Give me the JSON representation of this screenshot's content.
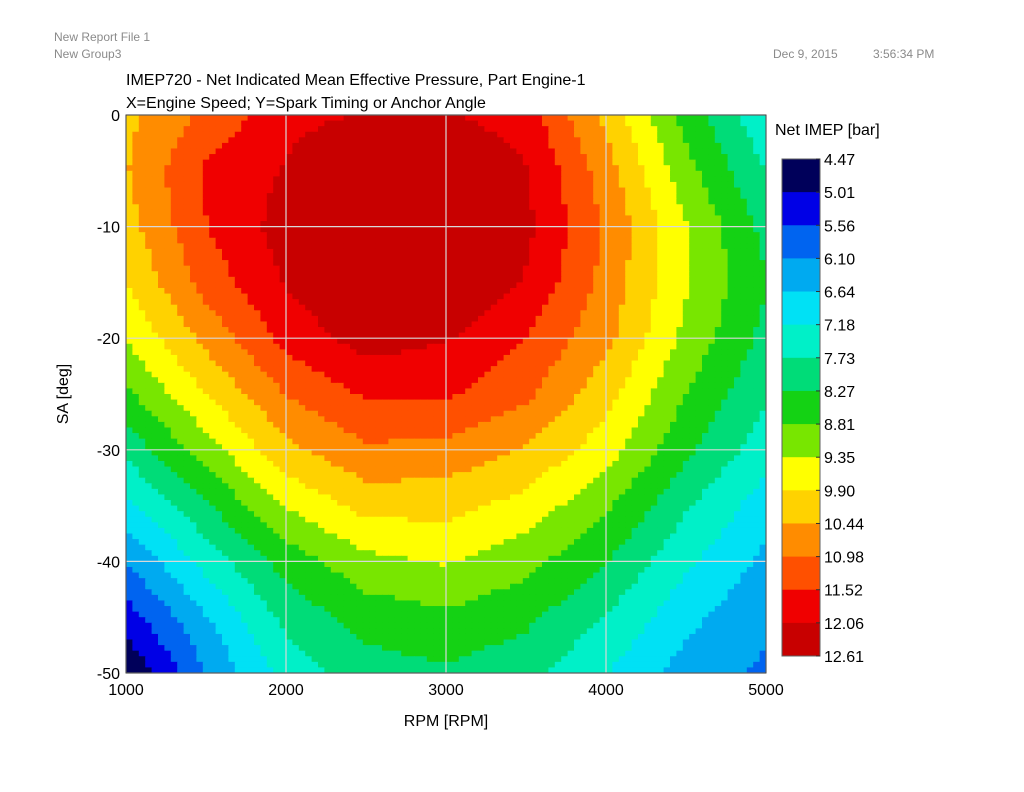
{
  "header": {
    "report_file": "New Report File 1",
    "group": "New Group3",
    "date": "Dec 9, 2015",
    "time": "3:56:34 PM"
  },
  "chart_data": {
    "type": "heatmap",
    "title": "IMEP720 - Net Indicated Mean Effective Pressure, Part Engine-1",
    "subtitle": "X=Engine Speed; Y=Spark Timing or Anchor Angle",
    "xlabel": "RPM [RPM]",
    "ylabel": "SA [deg]",
    "xlim": [
      1000,
      5000
    ],
    "ylim": [
      -50,
      0
    ],
    "xticks": [
      "1000",
      "2000",
      "3000",
      "4000",
      "5000"
    ],
    "yticks": [
      "0",
      "-10",
      "-20",
      "-30",
      "-40",
      "-50"
    ],
    "grid": true,
    "legend_position": "right",
    "colorbar": {
      "title": "Net IMEP [bar]",
      "labels": [
        "4.47",
        "5.01",
        "5.56",
        "6.10",
        "6.64",
        "7.18",
        "7.73",
        "8.27",
        "8.81",
        "9.35",
        "9.90",
        "10.44",
        "10.98",
        "11.52",
        "12.06",
        "12.61"
      ],
      "colors": [
        "#00005a",
        "#0000e6",
        "#0064f0",
        "#00aaf0",
        "#00e1f5",
        "#00f0c8",
        "#00dc78",
        "#14d214",
        "#78e600",
        "#ffff00",
        "#ffd200",
        "#ff8c00",
        "#ff5000",
        "#f00000",
        "#c80000"
      ]
    },
    "x": [
      1000,
      1500,
      2000,
      2500,
      3000,
      3500,
      4000,
      4500,
      5000
    ],
    "y": [
      0,
      -5,
      -10,
      -15,
      -20,
      -25,
      -30,
      -35,
      -40,
      -45,
      -50
    ],
    "z": [
      [
        10.3,
        11.1,
        11.9,
        12.1,
        12.1,
        11.8,
        10.3,
        8.6,
        7.3
      ],
      [
        10.4,
        11.6,
        12.1,
        12.7,
        12.7,
        12.1,
        10.7,
        9.0,
        7.7
      ],
      [
        10.2,
        11.5,
        12.3,
        12.8,
        12.8,
        12.2,
        10.9,
        9.4,
        8.1
      ],
      [
        9.9,
        11.2,
        12.1,
        12.7,
        12.8,
        12.0,
        10.8,
        9.4,
        8.3
      ],
      [
        9.4,
        10.6,
        11.7,
        12.3,
        12.1,
        11.5,
        10.6,
        9.2,
        8.1
      ],
      [
        8.7,
        9.9,
        11.0,
        11.6,
        11.6,
        11.1,
        10.1,
        8.8,
        7.8
      ],
      [
        7.9,
        9.1,
        10.3,
        10.9,
        10.8,
        10.4,
        9.6,
        8.4,
        7.4
      ],
      [
        7.0,
        8.2,
        9.4,
        10.1,
        10.1,
        9.7,
        8.9,
        7.8,
        6.9
      ],
      [
        6.1,
        7.4,
        8.5,
        9.2,
        9.4,
        9.0,
        8.3,
        7.3,
        6.5
      ],
      [
        5.3,
        6.6,
        7.9,
        8.5,
        8.7,
        8.4,
        7.7,
        6.8,
        6.2
      ],
      [
        4.5,
        6.1,
        7.4,
        8.0,
        8.2,
        7.9,
        7.2,
        6.4,
        6.0
      ]
    ]
  }
}
